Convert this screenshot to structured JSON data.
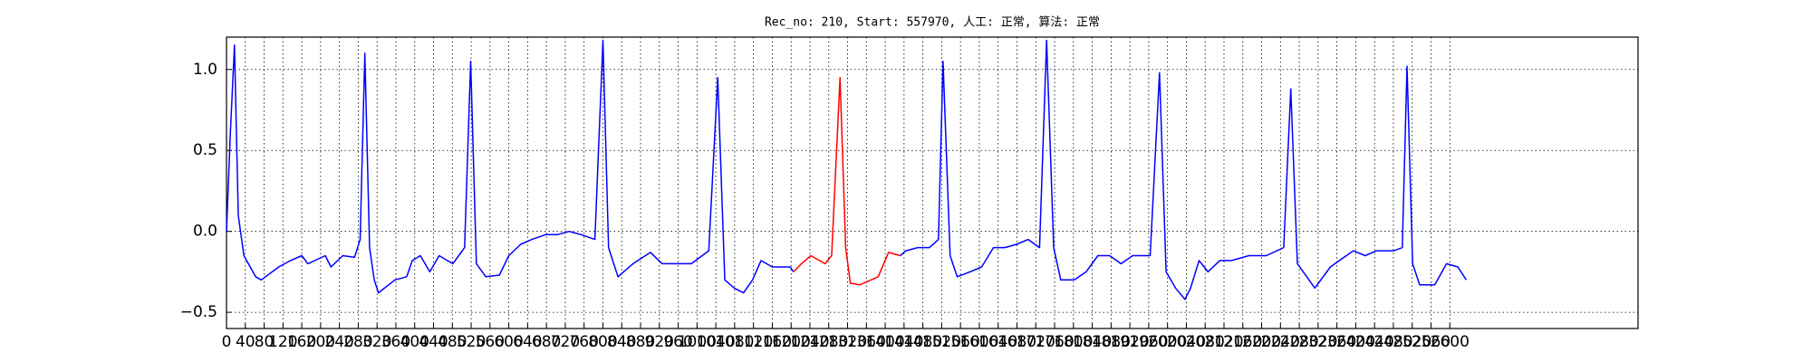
{
  "chart_data": {
    "type": "line",
    "title": "Rec_no: 210, Start: 557970, 人工: 正常, 算法: 正常",
    "series": [
      {
        "color": "#0000ff",
        "x": [
          0,
          8,
          17,
          25,
          37,
          62,
          74,
          111,
          136,
          160,
          173,
          210,
          222,
          247,
          272,
          284,
          294,
          304,
          314,
          323,
          358,
          383,
          395,
          412,
          432,
          452,
          481,
          506,
          519,
          531,
          551,
          580,
          600,
          625,
          649,
          679,
          704,
          728,
          753,
          783,
          800,
          812,
          832,
          864,
          901,
          926,
          951,
          988,
          1025,
          1044,
          1059,
          1079,
          1099,
          1118,
          1136,
          1160,
          1198,
          1205,
          1304,
          1432,
          1444,
          1469,
          1494,
          1513,
          1523,
          1538,
          1553,
          1580,
          1605,
          1630,
          1654,
          1679,
          1704,
          1728,
          1743,
          1758,
          1773,
          1802,
          1827,
          1852,
          1877,
          1901,
          1926,
          1963,
          1983,
          1997,
          2017,
          2037,
          2049,
          2067,
          2086,
          2111,
          2136,
          2173,
          2210,
          2247,
          2262,
          2276,
          2296,
          2313,
          2346,
          2370,
          2395,
          2420,
          2444,
          2481,
          2499,
          2509,
          2521,
          2536,
          2568,
          2593,
          2617,
          2635
        ],
        "values": [
          0.0,
          0.6,
          1.15,
          0.1,
          -0.15,
          -0.28,
          -0.3,
          -0.22,
          -0.18,
          -0.15,
          -0.2,
          -0.15,
          -0.22,
          -0.15,
          -0.16,
          -0.05,
          1.1,
          -0.1,
          -0.3,
          -0.38,
          -0.3,
          -0.28,
          -0.18,
          -0.15,
          -0.25,
          -0.15,
          -0.2,
          -0.1,
          1.05,
          -0.2,
          -0.28,
          -0.27,
          -0.15,
          -0.08,
          -0.05,
          -0.02,
          -0.02,
          0.0,
          -0.02,
          -0.05,
          1.18,
          -0.1,
          -0.28,
          -0.2,
          -0.13,
          -0.2,
          -0.2,
          -0.2,
          -0.12,
          0.95,
          -0.3,
          -0.35,
          -0.38,
          -0.3,
          -0.18,
          -0.22,
          -0.22,
          -0.25,
          null,
          -0.15,
          -0.12,
          -0.1,
          -0.1,
          -0.05,
          1.05,
          -0.15,
          -0.28,
          -0.25,
          -0.22,
          -0.1,
          -0.1,
          -0.08,
          -0.05,
          -0.1,
          1.18,
          -0.1,
          -0.3,
          -0.3,
          -0.25,
          -0.15,
          -0.15,
          -0.2,
          -0.15,
          -0.15,
          0.98,
          -0.25,
          -0.35,
          -0.42,
          -0.35,
          -0.18,
          -0.25,
          -0.18,
          -0.18,
          -0.15,
          -0.15,
          -0.1,
          0.88,
          -0.2,
          -0.28,
          -0.35,
          -0.22,
          -0.17,
          -0.12,
          -0.15,
          -0.12,
          -0.12,
          -0.1,
          1.02,
          -0.2,
          -0.33,
          -0.33,
          -0.2,
          -0.22,
          -0.3
        ]
      },
      {
        "color": "#ff0000",
        "x": [
          1205,
          1222,
          1242,
          1272,
          1286,
          1304,
          1316,
          1326,
          1346,
          1370,
          1385,
          1407,
          1432
        ],
        "values": [
          -0.25,
          -0.2,
          -0.15,
          -0.2,
          -0.15,
          0.95,
          -0.1,
          -0.32,
          -0.33,
          -0.3,
          -0.28,
          -0.13,
          -0.15
        ]
      }
    ],
    "xlim": [
      0,
      3000
    ],
    "ylim": [
      -0.6,
      1.2
    ],
    "xticks": [
      0,
      40,
      80,
      120,
      160,
      200,
      240,
      280,
      320,
      360,
      400,
      440,
      480,
      520,
      560,
      600,
      640,
      680,
      720,
      760,
      800,
      840,
      880,
      920,
      960,
      1000,
      1040,
      1080,
      1120,
      1160,
      1200,
      1240,
      1280,
      1320,
      1360,
      1400,
      1440,
      1480,
      1520,
      1560,
      1600,
      1640,
      1680,
      1720,
      1760,
      1800,
      1840,
      1880,
      1920,
      1960,
      2000,
      2040,
      2080,
      2120,
      2160,
      2200,
      2240,
      2280,
      2320,
      2360,
      2400,
      2440,
      2480,
      2520,
      2560,
      2600
    ],
    "yticks": [
      {
        "value": -0.5,
        "label": "−0.5"
      },
      {
        "value": 0,
        "label": "0.0"
      },
      0.5,
      {
        "value": 1,
        "label": "1.0"
      }
    ],
    "grid": true
  }
}
